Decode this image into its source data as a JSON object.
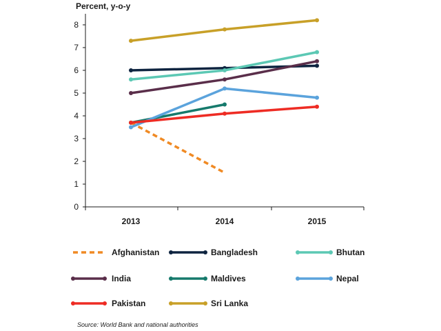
{
  "chart_data": {
    "type": "line",
    "ylabel": "Percent, y-o-y",
    "xlabel": "",
    "x": [
      "2013",
      "2014",
      "2015"
    ],
    "ylim": [
      0,
      8
    ],
    "yticks": [
      "0",
      "1",
      "2",
      "3",
      "4",
      "5",
      "6",
      "7",
      "8"
    ],
    "grid": false,
    "legend_position": "bottom",
    "series": [
      {
        "name": "Afghanistan",
        "values": [
          3.7,
          1.5,
          null
        ],
        "color": "#f08a24",
        "dashed": true
      },
      {
        "name": "Bangladesh",
        "values": [
          6.0,
          6.1,
          6.2
        ],
        "color": "#0e2440",
        "dashed": false
      },
      {
        "name": "Bhutan",
        "values": [
          5.6,
          6.0,
          6.8
        ],
        "color": "#5cc8b4",
        "dashed": false
      },
      {
        "name": "India",
        "values": [
          5.0,
          5.6,
          6.4
        ],
        "color": "#5a2e4a",
        "dashed": false
      },
      {
        "name": "Maldives",
        "values": [
          3.7,
          4.5,
          null
        ],
        "color": "#167a6c",
        "dashed": false
      },
      {
        "name": "Nepal",
        "values": [
          3.5,
          5.2,
          4.8
        ],
        "color": "#5ba3dc",
        "dashed": false
      },
      {
        "name": "Pakistan",
        "values": [
          3.7,
          4.1,
          4.4
        ],
        "color": "#ee2c24",
        "dashed": false
      },
      {
        "name": "Sri Lanka",
        "values": [
          7.3,
          7.8,
          8.2
        ],
        "color": "#c8a028",
        "dashed": false
      }
    ],
    "source": "Source: World Bank and national authorities"
  }
}
